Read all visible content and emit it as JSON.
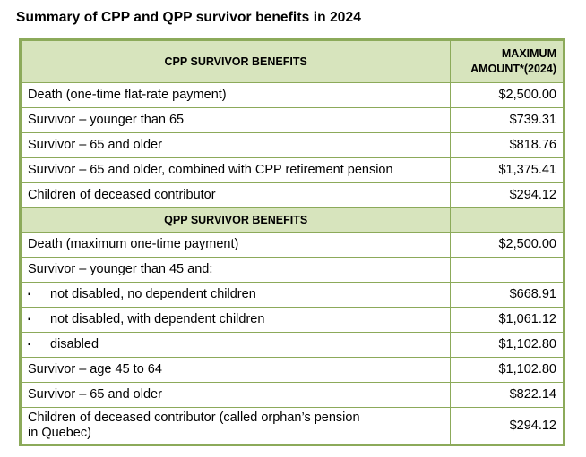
{
  "title": "Summary of CPP and QPP survivor benefits in 2024",
  "header": {
    "col1": "CPP SURVIVOR BENEFITS",
    "col2_line1": "MAXIMUM",
    "col2_line2": "AMOUNT*(2024)"
  },
  "cpp_rows": [
    {
      "label": "Death (one-time flat-rate payment)",
      "amount": "$2,500.00"
    },
    {
      "label": "Survivor – younger than 65",
      "amount": "$739.31"
    },
    {
      "label": "Survivor – 65 and older",
      "amount": "$818.76"
    },
    {
      "label": "Survivor – 65 and older, combined with CPP retirement pension",
      "amount": "$1,375.41"
    },
    {
      "label": "Children of deceased contributor",
      "amount": "$294.12"
    }
  ],
  "qpp_header": "QPP SURVIVOR BENEFITS",
  "qpp_rows": [
    {
      "label": "Death (maximum one-time payment)",
      "amount": "$2,500.00"
    },
    {
      "label": "Survivor – younger than 45 and:",
      "amount": ""
    },
    {
      "label": "not disabled, no dependent children",
      "amount": "$668.91",
      "bullet": "▪"
    },
    {
      "label": "not disabled, with dependent children",
      "amount": "$1,061.12",
      "bullet": "▪"
    },
    {
      "label": "disabled",
      "amount": "$1,102.80",
      "bullet": "▪"
    },
    {
      "label": "Survivor – age 45 to 64",
      "amount": "$1,102.80"
    },
    {
      "label": "Survivor – 65 and older",
      "amount": "$822.14"
    },
    {
      "label_line1": "Children of deceased contributor (called orphan’s pension",
      "label_line2": "in Quebec)",
      "amount": "$294.12"
    }
  ]
}
